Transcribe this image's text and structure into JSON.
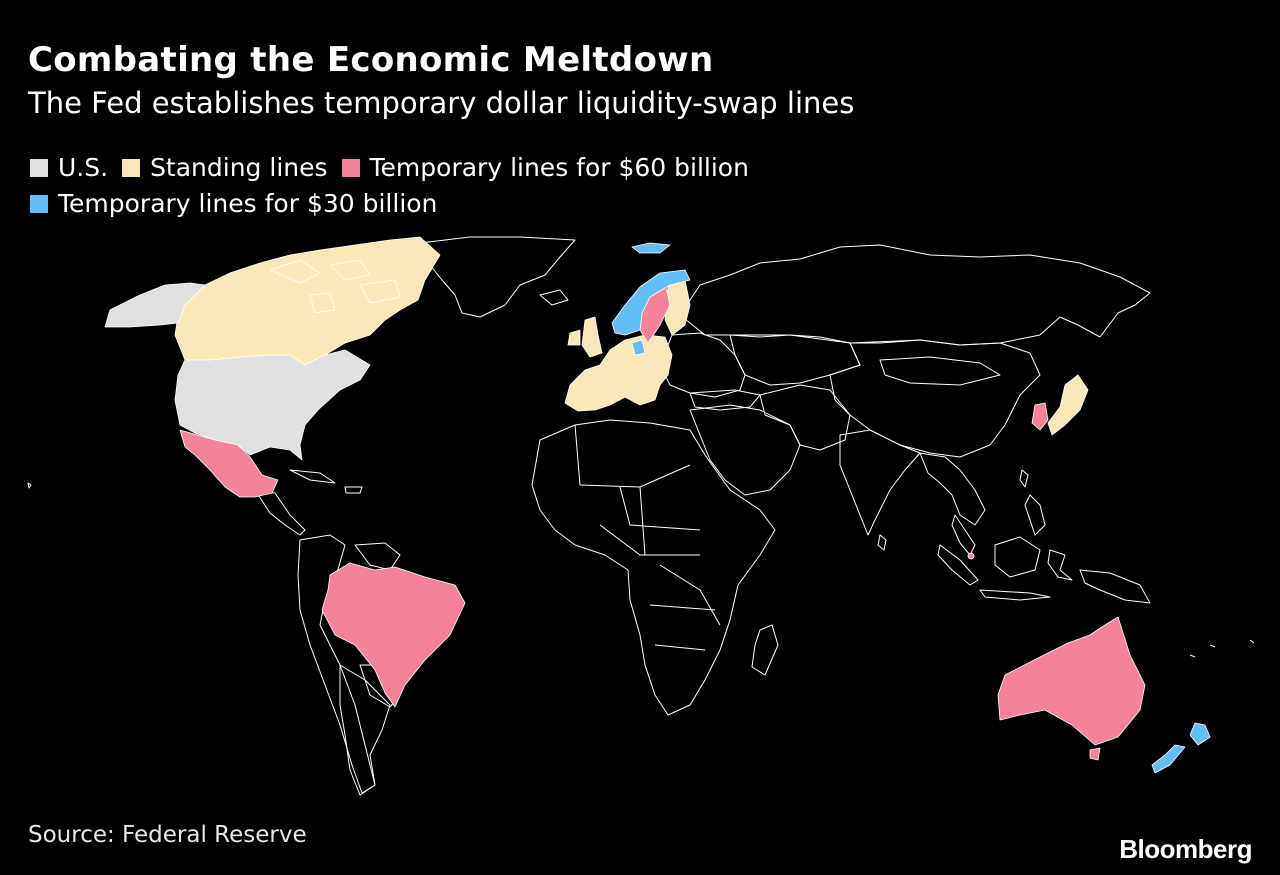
{
  "header": {
    "title": "Combating the Economic Meltdown",
    "subtitle": "The Fed establishes temporary dollar liquidity-swap lines"
  },
  "legend": [
    {
      "label": "U.S.",
      "color": "#e0e0e0"
    },
    {
      "label": "Standing lines",
      "color": "#fae7b7"
    },
    {
      "label": "Temporary lines for $60 billion",
      "color": "#f4839a"
    },
    {
      "label": "Temporary lines for $30 billion",
      "color": "#63bdf6"
    }
  ],
  "map": {
    "colors": {
      "us": "#e0e0e0",
      "standing": "#fae7b7",
      "sixty": "#f4839a",
      "thirty": "#63bdf6",
      "border": "#ffffff"
    },
    "regions": {
      "us": [
        "United States"
      ],
      "standing": [
        "Canada",
        "Euro area",
        "Switzerland",
        "United Kingdom",
        "Japan"
      ],
      "sixty": [
        "Mexico",
        "Brazil",
        "South Korea",
        "Australia",
        "Singapore",
        "Sweden"
      ],
      "thirty": [
        "Norway",
        "Denmark",
        "New Zealand"
      ]
    }
  },
  "footer": {
    "source": "Source: Federal Reserve",
    "brand": "Bloomberg"
  }
}
